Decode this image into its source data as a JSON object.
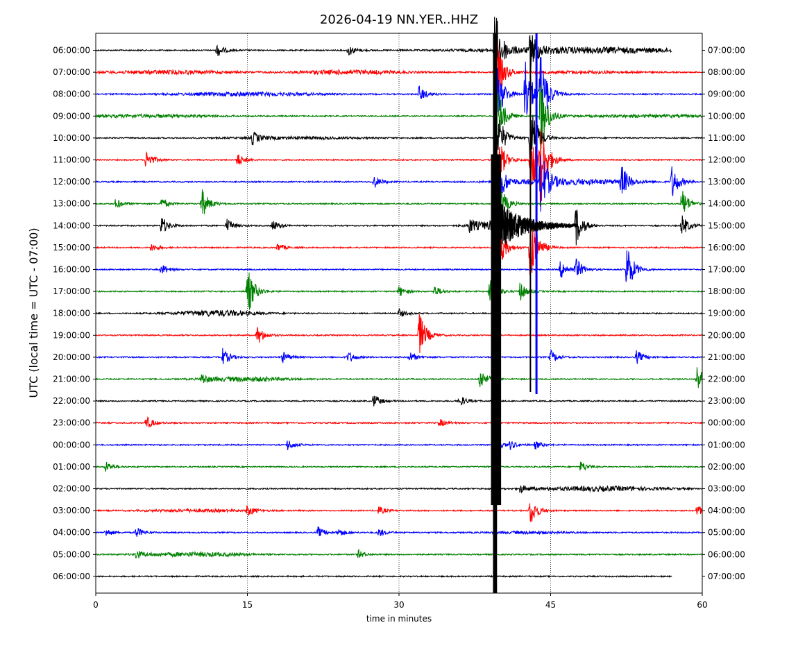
{
  "chart_data": {
    "type": "line",
    "title": "2026-04-19 NN.YER..HHZ",
    "xlabel": "time in minutes",
    "ylabel": "UTC (local time = UTC - 07:00)",
    "xlim": [
      0,
      60
    ],
    "x_ticks": [
      "0",
      "15",
      "30",
      "45",
      "60"
    ],
    "vertical_gridlines": [
      15,
      30,
      45
    ],
    "colors": [
      "#000000",
      "#ff0000",
      "#0000ff",
      "#008000"
    ],
    "rows": [
      {
        "left": "06:00:00",
        "right": "07:00:00",
        "color": "#000000",
        "events": [
          [
            12,
            10
          ],
          [
            25,
            8
          ],
          [
            39.5,
            60
          ],
          [
            43,
            30
          ]
        ],
        "noise": [
          [
            50,
            0.9,
            12
          ],
          [
            46,
            0.5,
            8
          ]
        ],
        "end": 57
      },
      {
        "left": "07:00:00",
        "right": "08:00:00",
        "color": "#ff0000",
        "events": [
          [
            39.5,
            60
          ]
        ],
        "noise": [
          [
            7,
            0.8,
            6
          ],
          [
            25,
            0.9,
            6
          ],
          [
            48,
            0.5,
            6
          ]
        ]
      },
      {
        "left": "08:00:00",
        "right": "09:00:00",
        "color": "#0000ff",
        "events": [
          [
            32,
            12
          ],
          [
            39.5,
            60
          ],
          [
            42.5,
            60
          ],
          [
            44,
            60
          ]
        ],
        "noise": [
          [
            15,
            0.8,
            7
          ]
        ]
      },
      {
        "left": "09:00:00",
        "right": "10:00:00",
        "color": "#008000",
        "events": [
          [
            39.5,
            60
          ],
          [
            44,
            60
          ]
        ],
        "noise": [
          [
            5,
            0.6,
            7
          ],
          [
            55,
            0.5,
            7
          ]
        ]
      },
      {
        "left": "10:00:00",
        "right": "11:00:00",
        "color": "#000000",
        "events": [
          [
            15.5,
            10
          ],
          [
            39.5,
            60
          ],
          [
            43,
            60
          ]
        ],
        "noise": [
          [
            20,
            0.5,
            6
          ]
        ]
      },
      {
        "left": "11:00:00",
        "right": "12:00:00",
        "color": "#ff0000",
        "events": [
          [
            5,
            14
          ],
          [
            14,
            10
          ],
          [
            39.5,
            60
          ],
          [
            43,
            60
          ],
          [
            44,
            60
          ]
        ],
        "noise": []
      },
      {
        "left": "12:00:00",
        "right": "13:00:00",
        "color": "#0000ff",
        "events": [
          [
            27.5,
            10
          ],
          [
            39.5,
            60
          ],
          [
            44,
            50
          ],
          [
            52,
            25
          ],
          [
            57,
            25
          ]
        ],
        "noise": [
          [
            47,
            1.2,
            6
          ]
        ]
      },
      {
        "left": "13:00:00",
        "right": "14:00:00",
        "color": "#008000",
        "events": [
          [
            2,
            8
          ],
          [
            6.5,
            8
          ],
          [
            10.5,
            22
          ],
          [
            39.5,
            60
          ],
          [
            58,
            22
          ]
        ],
        "noise": []
      },
      {
        "left": "14:00:00",
        "right": "15:00:00",
        "color": "#000000",
        "events": [
          [
            6.5,
            14
          ],
          [
            13,
            10
          ],
          [
            17.5,
            8
          ],
          [
            37,
            10
          ],
          [
            47.5,
            30
          ],
          [
            58,
            16
          ]
        ],
        "noise": [
          [
            41,
            3,
            3
          ]
        ]
      },
      {
        "left": "15:00:00",
        "right": "16:00:00",
        "color": "#ff0000",
        "events": [
          [
            5.5,
            6
          ],
          [
            18,
            6
          ],
          [
            39.5,
            60
          ],
          [
            43,
            60
          ]
        ],
        "noise": []
      },
      {
        "left": "16:00:00",
        "right": "17:00:00",
        "color": "#0000ff",
        "events": [
          [
            6.5,
            8
          ],
          [
            46,
            14
          ],
          [
            47.5,
            16
          ],
          [
            52.5,
            40
          ]
        ],
        "noise": []
      },
      {
        "left": "17:00:00",
        "right": "18:00:00",
        "color": "#008000",
        "events": [
          [
            15,
            38
          ],
          [
            30,
            8
          ],
          [
            33.5,
            8
          ],
          [
            39,
            22
          ],
          [
            42,
            14
          ]
        ],
        "noise": []
      },
      {
        "left": "18:00:00",
        "right": "19:00:00",
        "color": "#000000",
        "events": [
          [
            30,
            6
          ]
        ],
        "noise": [
          [
            12,
            1.3,
            4
          ]
        ]
      },
      {
        "left": "19:00:00",
        "right": "20:00:00",
        "color": "#ff0000",
        "events": [
          [
            16,
            14
          ],
          [
            32,
            34
          ]
        ],
        "noise": []
      },
      {
        "left": "20:00:00",
        "right": "21:00:00",
        "color": "#0000ff",
        "events": [
          [
            12.5,
            14
          ],
          [
            18.5,
            8
          ],
          [
            25,
            8
          ],
          [
            31,
            8
          ],
          [
            45,
            10
          ],
          [
            53.5,
            10
          ]
        ],
        "noise": []
      },
      {
        "left": "21:00:00",
        "right": "22:00:00",
        "color": "#008000",
        "events": [
          [
            10.5,
            8
          ],
          [
            38,
            16
          ],
          [
            59.5,
            20
          ]
        ],
        "noise": [
          [
            15,
            1,
            4
          ]
        ]
      },
      {
        "left": "22:00:00",
        "right": "23:00:00",
        "color": "#000000",
        "events": [
          [
            27.5,
            10
          ],
          [
            36,
            8
          ]
        ],
        "noise": []
      },
      {
        "left": "23:00:00",
        "right": "00:00:00",
        "color": "#ff0000",
        "events": [
          [
            5,
            10
          ],
          [
            34,
            6
          ]
        ],
        "noise": []
      },
      {
        "left": "00:00:00",
        "right": "01:00:00",
        "color": "#0000ff",
        "events": [
          [
            19,
            8
          ],
          [
            39.5,
            10
          ],
          [
            41,
            6
          ],
          [
            43.5,
            6
          ]
        ],
        "noise": []
      },
      {
        "left": "01:00:00",
        "right": "02:00:00",
        "color": "#008000",
        "events": [
          [
            1,
            8
          ],
          [
            48,
            8
          ]
        ],
        "noise": []
      },
      {
        "left": "02:00:00",
        "right": "03:00:00",
        "color": "#000000",
        "events": [
          [
            42,
            6
          ]
        ],
        "noise": [
          [
            50,
            1,
            6
          ]
        ]
      },
      {
        "left": "03:00:00",
        "right": "04:00:00",
        "color": "#ff0000",
        "events": [
          [
            15,
            8
          ],
          [
            28,
            6
          ],
          [
            43,
            22
          ],
          [
            59.5,
            8
          ]
        ],
        "noise": [
          [
            10,
            0.5,
            5
          ]
        ]
      },
      {
        "left": "04:00:00",
        "right": "05:00:00",
        "color": "#0000ff",
        "events": [
          [
            1,
            6
          ],
          [
            4,
            8
          ],
          [
            22,
            8
          ],
          [
            24,
            6
          ],
          [
            28,
            6
          ]
        ],
        "noise": [
          [
            43,
            0.5,
            4
          ]
        ]
      },
      {
        "left": "05:00:00",
        "right": "06:00:00",
        "color": "#008000",
        "events": [
          [
            4,
            6
          ],
          [
            26,
            6
          ]
        ],
        "noise": [
          [
            10,
            0.9,
            5
          ]
        ]
      },
      {
        "left": "06:00:00",
        "right": "07:00:00",
        "color": "#000000",
        "events": [],
        "noise": [],
        "end": 57
      }
    ]
  }
}
